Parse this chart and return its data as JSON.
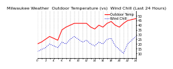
{
  "title": "Milwaukee Weather  Outdoor Temperature (vs)  Wind Chill (Last 24 Hours)",
  "title_fontsize": 4.5,
  "background_color": "#ffffff",
  "grid_color": "#aaaaaa",
  "x_values": [
    0,
    1,
    2,
    3,
    4,
    5,
    6,
    7,
    8,
    9,
    10,
    11,
    12,
    13,
    14,
    15,
    16,
    17,
    18,
    19,
    20,
    21,
    22,
    23,
    24
  ],
  "temp_values": [
    20,
    22,
    25,
    28,
    26,
    24,
    35,
    38,
    40,
    42,
    42,
    42,
    42,
    38,
    36,
    40,
    38,
    42,
    44,
    40,
    38,
    42,
    45,
    46,
    47
  ],
  "windchill_values": [
    12,
    14,
    16,
    20,
    18,
    16,
    22,
    20,
    25,
    28,
    25,
    22,
    24,
    20,
    18,
    22,
    20,
    25,
    26,
    18,
    14,
    10,
    20,
    24,
    28
  ],
  "temp_color": "#ff0000",
  "windchill_color": "#0000cc",
  "ylim_min": 5,
  "ylim_max": 55,
  "ytick_values": [
    10,
    15,
    20,
    25,
    30,
    35,
    40,
    45,
    50
  ],
  "ytick_fontsize": 3.5,
  "xtick_fontsize": 3.0,
  "vgrid_positions": [
    0,
    1,
    2,
    3,
    4,
    5,
    6,
    7,
    8,
    9,
    10,
    11,
    12,
    13,
    14,
    15,
    16,
    17,
    18,
    19,
    20,
    21,
    22,
    23,
    24
  ],
  "legend_temp": "Outdoor Temp",
  "legend_wind": "Wind Chill",
  "legend_fontsize": 3.5
}
